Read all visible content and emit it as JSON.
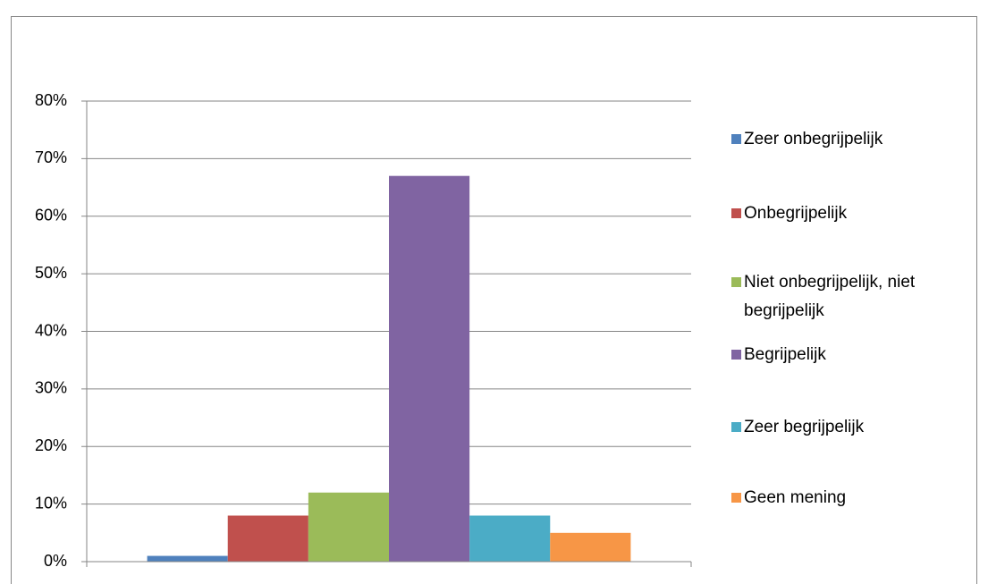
{
  "chart_data": {
    "type": "bar",
    "categories": [
      null
    ],
    "series": [
      {
        "name": "Zeer onbegrijpelijk",
        "color": "#4f81bd",
        "values": [
          1
        ]
      },
      {
        "name": "Onbegrijpelijk",
        "color": "#c0504d",
        "values": [
          8
        ]
      },
      {
        "name": "Niet onbegrijpelijk, niet begrijpelijk",
        "color": "#9bbb59",
        "values": [
          12
        ]
      },
      {
        "name": "Begrijpelijk",
        "color": "#8064a2",
        "values": [
          67
        ]
      },
      {
        "name": "Zeer begrijpelijk",
        "color": "#4bacc6",
        "values": [
          8
        ]
      },
      {
        "name": "Geen mening",
        "color": "#f79646",
        "values": [
          5
        ]
      }
    ],
    "ylim": [
      0,
      80
    ],
    "yticks": [
      {
        "value": 0,
        "label": "0%"
      },
      {
        "value": 10,
        "label": "10%"
      },
      {
        "value": 20,
        "label": "20%"
      },
      {
        "value": 30,
        "label": "30%"
      },
      {
        "value": 40,
        "label": "40%"
      },
      {
        "value": 50,
        "label": "50%"
      },
      {
        "value": 60,
        "label": "60%"
      },
      {
        "value": 70,
        "label": "70%"
      },
      {
        "value": 80,
        "label": "80%"
      }
    ],
    "grid": true,
    "legend": "right"
  }
}
